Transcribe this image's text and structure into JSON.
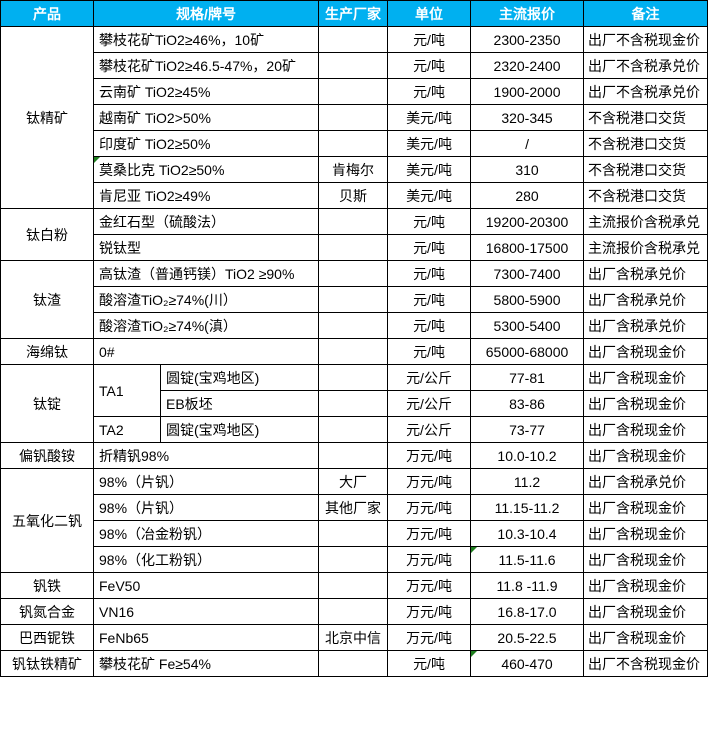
{
  "colors": {
    "header_bg": "#00B0F0",
    "header_text": "#FFFFFF",
    "border": "#000000",
    "comment_marker_green": "#1E7E1E"
  },
  "header": {
    "columns": [
      "产品",
      "规格/牌号",
      "生产厂家",
      "单位",
      "主流报价",
      "备注"
    ]
  },
  "table": {
    "rows": [
      [
        {
          "v": "钛精矿",
          "type": "product",
          "rs": 7
        },
        {
          "v": "攀枝花矿TiO2≥46%，10矿",
          "type": "spec",
          "cs": 2
        },
        {
          "v": "",
          "type": "mfr"
        },
        {
          "v": "元/吨",
          "type": "unit"
        },
        {
          "v": "2300-2350",
          "type": "price"
        },
        {
          "v": "出厂不含税现金价",
          "type": "remark"
        }
      ],
      [
        {
          "v": "攀枝花矿TiO2≥46.5-47%，20矿",
          "type": "spec",
          "cs": 2
        },
        {
          "v": "",
          "type": "mfr"
        },
        {
          "v": "元/吨",
          "type": "unit"
        },
        {
          "v": "2320-2400",
          "type": "price"
        },
        {
          "v": "出厂不含税承兑价",
          "type": "remark"
        }
      ],
      [
        {
          "v": "云南矿 TiO2≥45%",
          "type": "spec",
          "cs": 2
        },
        {
          "v": "",
          "type": "mfr"
        },
        {
          "v": "元/吨",
          "type": "unit"
        },
        {
          "v": "1900-2000",
          "type": "price"
        },
        {
          "v": "出厂不含税承兑价",
          "type": "remark"
        }
      ],
      [
        {
          "v": "越南矿 TiO2>50%",
          "type": "spec",
          "cs": 2
        },
        {
          "v": "",
          "type": "mfr"
        },
        {
          "v": "美元/吨",
          "type": "unit"
        },
        {
          "v": "320-345",
          "type": "price"
        },
        {
          "v": "不含税港口交货",
          "type": "remark"
        }
      ],
      [
        {
          "v": "印度矿 TiO2≥50%",
          "type": "spec",
          "cs": 2
        },
        {
          "v": "",
          "type": "mfr"
        },
        {
          "v": "美元/吨",
          "type": "unit"
        },
        {
          "v": "/",
          "type": "price"
        },
        {
          "v": "不含税港口交货",
          "type": "remark"
        }
      ],
      [
        {
          "v": "莫桑比克 TiO2≥50%",
          "type": "spec",
          "cs": 2,
          "marker": true
        },
        {
          "v": "肯梅尔",
          "type": "mfr"
        },
        {
          "v": "美元/吨",
          "type": "unit"
        },
        {
          "v": "310",
          "type": "price"
        },
        {
          "v": "不含税港口交货",
          "type": "remark"
        }
      ],
      [
        {
          "v": "肯尼亚 TiO2≥49%",
          "type": "spec",
          "cs": 2
        },
        {
          "v": "贝斯",
          "type": "mfr"
        },
        {
          "v": "美元/吨",
          "type": "unit"
        },
        {
          "v": "280",
          "type": "price"
        },
        {
          "v": "不含税港口交货",
          "type": "remark"
        }
      ],
      [
        {
          "v": "钛白粉",
          "type": "product",
          "rs": 2
        },
        {
          "v": "金红石型（硫酸法）",
          "type": "spec",
          "cs": 2
        },
        {
          "v": "",
          "type": "mfr"
        },
        {
          "v": "元/吨",
          "type": "unit"
        },
        {
          "v": "19200-20300",
          "type": "price"
        },
        {
          "v": "主流报价含税承兑",
          "type": "remark"
        }
      ],
      [
        {
          "v": "锐钛型",
          "type": "spec",
          "cs": 2
        },
        {
          "v": "",
          "type": "mfr"
        },
        {
          "v": "元/吨",
          "type": "unit"
        },
        {
          "v": "16800-17500",
          "type": "price"
        },
        {
          "v": "主流报价含税承兑",
          "type": "remark"
        }
      ],
      [
        {
          "v": "钛渣",
          "type": "product",
          "rs": 3
        },
        {
          "v": "高钛渣（普通钙镁）TiO2 ≥90%",
          "type": "spec",
          "cs": 2
        },
        {
          "v": "",
          "type": "mfr"
        },
        {
          "v": "元/吨",
          "type": "unit"
        },
        {
          "v": "7300-7400",
          "type": "price"
        },
        {
          "v": "出厂含税承兑价",
          "type": "remark"
        }
      ],
      [
        {
          "v": "酸溶渣TiO₂≥74%(川）",
          "type": "spec",
          "cs": 2
        },
        {
          "v": "",
          "type": "mfr"
        },
        {
          "v": "元/吨",
          "type": "unit"
        },
        {
          "v": "5800-5900",
          "type": "price"
        },
        {
          "v": "出厂含税承兑价",
          "type": "remark"
        }
      ],
      [
        {
          "v": "酸溶渣TiO₂≥74%(滇）",
          "type": "spec",
          "cs": 2
        },
        {
          "v": "",
          "type": "mfr"
        },
        {
          "v": "元/吨",
          "type": "unit"
        },
        {
          "v": "5300-5400",
          "type": "price"
        },
        {
          "v": "出厂含税承兑价",
          "type": "remark"
        }
      ],
      [
        {
          "v": "海绵钛",
          "type": "product"
        },
        {
          "v": "0#",
          "type": "spec",
          "cs": 2
        },
        {
          "v": "",
          "type": "mfr"
        },
        {
          "v": "元/吨",
          "type": "unit"
        },
        {
          "v": "65000-68000",
          "type": "price"
        },
        {
          "v": "出厂含税现金价",
          "type": "remark"
        }
      ],
      [
        {
          "v": "钛锭",
          "type": "product",
          "rs": 3
        },
        {
          "v": "TA1",
          "type": "grade",
          "rs": 2
        },
        {
          "v": "圆锭(宝鸡地区)",
          "type": "subspec"
        },
        {
          "v": "",
          "type": "mfr"
        },
        {
          "v": "元/公斤",
          "type": "unit"
        },
        {
          "v": "77-81",
          "type": "price"
        },
        {
          "v": "出厂含税现金价",
          "type": "remark"
        }
      ],
      [
        {
          "v": "EB板坯",
          "type": "subspec"
        },
        {
          "v": "",
          "type": "mfr"
        },
        {
          "v": "元/公斤",
          "type": "unit"
        },
        {
          "v": "83-86",
          "type": "price"
        },
        {
          "v": "出厂含税现金价",
          "type": "remark"
        }
      ],
      [
        {
          "v": "TA2",
          "type": "grade"
        },
        {
          "v": "圆锭(宝鸡地区)",
          "type": "subspec"
        },
        {
          "v": "",
          "type": "mfr"
        },
        {
          "v": "元/公斤",
          "type": "unit"
        },
        {
          "v": "73-77",
          "type": "price"
        },
        {
          "v": "出厂含税现金价",
          "type": "remark"
        }
      ],
      [
        {
          "v": "偏钒酸铵",
          "type": "product"
        },
        {
          "v": "折精钒98%",
          "type": "spec",
          "cs": 2
        },
        {
          "v": "",
          "type": "mfr"
        },
        {
          "v": "万元/吨",
          "type": "unit"
        },
        {
          "v": "10.0-10.2",
          "type": "price"
        },
        {
          "v": "出厂含税现金价",
          "type": "remark"
        }
      ],
      [
        {
          "v": "五氧化二钒",
          "type": "product",
          "rs": 4
        },
        {
          "v": "98%（片钒）",
          "type": "spec",
          "cs": 2
        },
        {
          "v": "大厂",
          "type": "mfr"
        },
        {
          "v": "万元/吨",
          "type": "unit"
        },
        {
          "v": "11.2",
          "type": "price"
        },
        {
          "v": "出厂含税承兑价",
          "type": "remark"
        }
      ],
      [
        {
          "v": "98%（片钒）",
          "type": "spec",
          "cs": 2
        },
        {
          "v": "其他厂家",
          "type": "mfr"
        },
        {
          "v": "万元/吨",
          "type": "unit"
        },
        {
          "v": "11.15-11.2",
          "type": "price"
        },
        {
          "v": "出厂含税现金价",
          "type": "remark"
        }
      ],
      [
        {
          "v": "98%（冶金粉钒）",
          "type": "spec",
          "cs": 2
        },
        {
          "v": "",
          "type": "mfr"
        },
        {
          "v": "万元/吨",
          "type": "unit"
        },
        {
          "v": "10.3-10.4",
          "type": "price"
        },
        {
          "v": "出厂含税现金价",
          "type": "remark"
        }
      ],
      [
        {
          "v": "98%（化工粉钒）",
          "type": "spec",
          "cs": 2
        },
        {
          "v": "",
          "type": "mfr"
        },
        {
          "v": "万元/吨",
          "type": "unit"
        },
        {
          "v": "11.5-11.6",
          "type": "price",
          "marker": true
        },
        {
          "v": "出厂含税现金价",
          "type": "remark"
        }
      ],
      [
        {
          "v": "钒铁",
          "type": "product"
        },
        {
          "v": "FeV50",
          "type": "spec",
          "cs": 2
        },
        {
          "v": "",
          "type": "mfr"
        },
        {
          "v": "万元/吨",
          "type": "unit"
        },
        {
          "v": "11.8 -11.9",
          "type": "price"
        },
        {
          "v": "出厂含税现金价",
          "type": "remark"
        }
      ],
      [
        {
          "v": "钒氮合金",
          "type": "product"
        },
        {
          "v": "VN16",
          "type": "spec",
          "cs": 2
        },
        {
          "v": "",
          "type": "mfr"
        },
        {
          "v": "万元/吨",
          "type": "unit"
        },
        {
          "v": "16.8-17.0",
          "type": "price"
        },
        {
          "v": "出厂含税现金价",
          "type": "remark"
        }
      ],
      [
        {
          "v": "巴西铌铁",
          "type": "product"
        },
        {
          "v": "FeNb65",
          "type": "spec",
          "cs": 2
        },
        {
          "v": "北京中信",
          "type": "mfr"
        },
        {
          "v": "万元/吨",
          "type": "unit"
        },
        {
          "v": "20.5-22.5",
          "type": "price"
        },
        {
          "v": "出厂含税现金价",
          "type": "remark"
        }
      ],
      [
        {
          "v": "钒钛铁精矿",
          "type": "product"
        },
        {
          "v": "攀枝花矿 Fe≥54%",
          "type": "spec",
          "cs": 2
        },
        {
          "v": "",
          "type": "mfr"
        },
        {
          "v": "元/吨",
          "type": "unit"
        },
        {
          "v": "460-470",
          "type": "price",
          "marker": true
        },
        {
          "v": "出厂不含税现金价",
          "type": "remark"
        }
      ]
    ]
  },
  "layout_note": "spreadsheet price table, 6 logical columns, grade sub-column inside spec column for titanium ingot rows"
}
